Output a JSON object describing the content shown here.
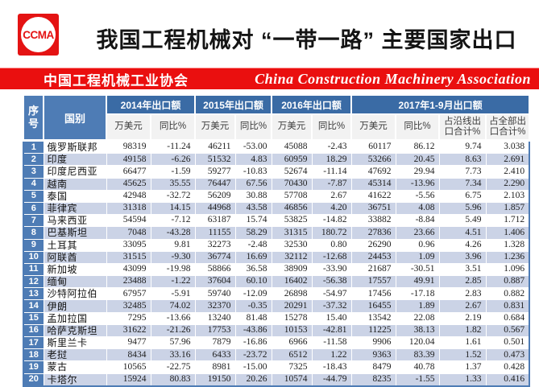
{
  "header": {
    "logo_text": "CCMA",
    "title": "我国工程机械对 “一带一路” 主要国家出口",
    "banner_cn": "中国工程机械工业协会",
    "banner_en": "China Construction Machinery Association"
  },
  "colors": {
    "brand_red": "#ea0f0f",
    "header_blue": "#4e7cb5",
    "group_header_blue": "#3a6ba5",
    "stripe_blue": "#cbd3e6",
    "subheader_gray": "#f2f2f2"
  },
  "table": {
    "index_header": "序号",
    "country_header": "国别",
    "col_groups": [
      {
        "label": "2014年出口额",
        "cols": [
          "万美元",
          "同比%"
        ]
      },
      {
        "label": "2015年出口额",
        "cols": [
          "万美元",
          "同比%"
        ]
      },
      {
        "label": "2016年出口额",
        "cols": [
          "万美元",
          "同比%"
        ]
      },
      {
        "label": "2017年1-9月出口额",
        "cols": [
          "万美元",
          "同比%",
          "占沿线出口合计%",
          "占全部出口合计%"
        ]
      }
    ],
    "rows": [
      {
        "no": "1",
        "country": "俄罗斯联邦",
        "values": [
          "98319",
          "-11.24",
          "46211",
          "-53.00",
          "45088",
          "-2.43",
          "60117",
          "86.12",
          "9.74",
          "3.038"
        ]
      },
      {
        "no": "2",
        "country": "印度",
        "values": [
          "49158",
          "-6.26",
          "51532",
          "4.83",
          "60959",
          "18.29",
          "53266",
          "20.45",
          "8.63",
          "2.691"
        ]
      },
      {
        "no": "3",
        "country": "印度尼西亚",
        "values": [
          "66477",
          "-1.59",
          "59277",
          "-10.83",
          "52674",
          "-11.14",
          "47692",
          "29.94",
          "7.73",
          "2.410"
        ]
      },
      {
        "no": "4",
        "country": "越南",
        "values": [
          "45625",
          "35.55",
          "76447",
          "67.56",
          "70430",
          "-7.87",
          "45314",
          "-13.96",
          "7.34",
          "2.290"
        ]
      },
      {
        "no": "5",
        "country": "泰国",
        "values": [
          "42948",
          "-32.72",
          "56209",
          "30.88",
          "57708",
          "2.67",
          "41622",
          "-5.56",
          "6.75",
          "2.103"
        ]
      },
      {
        "no": "6",
        "country": "菲律宾",
        "values": [
          "31318",
          "14.15",
          "44968",
          "43.58",
          "46856",
          "4.20",
          "36751",
          "4.08",
          "5.96",
          "1.857"
        ]
      },
      {
        "no": "7",
        "country": "马来西亚",
        "values": [
          "54594",
          "-7.12",
          "63187",
          "15.74",
          "53825",
          "-14.82",
          "33882",
          "-8.84",
          "5.49",
          "1.712"
        ]
      },
      {
        "no": "8",
        "country": "巴基斯坦",
        "values": [
          "7048",
          "-43.28",
          "11155",
          "58.29",
          "31315",
          "180.72",
          "27836",
          "23.66",
          "4.51",
          "1.406"
        ]
      },
      {
        "no": "9",
        "country": "土耳其",
        "values": [
          "33095",
          "9.81",
          "32273",
          "-2.48",
          "32530",
          "0.80",
          "26290",
          "0.96",
          "4.26",
          "1.328"
        ]
      },
      {
        "no": "10",
        "country": "阿联酋",
        "values": [
          "31515",
          "-9.30",
          "36774",
          "16.69",
          "32112",
          "-12.68",
          "24453",
          "1.09",
          "3.96",
          "1.236"
        ]
      },
      {
        "no": "11",
        "country": "新加坡",
        "values": [
          "43099",
          "-19.98",
          "58866",
          "36.58",
          "38909",
          "-33.90",
          "21687",
          "-30.51",
          "3.51",
          "1.096"
        ]
      },
      {
        "no": "12",
        "country": "缅甸",
        "values": [
          "23488",
          "-1.22",
          "37604",
          "60.10",
          "16402",
          "-56.38",
          "17557",
          "49.91",
          "2.85",
          "0.887"
        ]
      },
      {
        "no": "13",
        "country": "沙特阿拉伯",
        "values": [
          "67957",
          "-5.91",
          "59740",
          "-12.09",
          "26898",
          "-54.97",
          "17456",
          "-17.18",
          "2.83",
          "0.882"
        ]
      },
      {
        "no": "14",
        "country": "伊朗",
        "values": [
          "32485",
          "74.02",
          "32370",
          "-0.35",
          "20291",
          "-37.32",
          "16455",
          "1.89",
          "2.67",
          "0.831"
        ]
      },
      {
        "no": "15",
        "country": "孟加拉国",
        "values": [
          "7295",
          "-13.66",
          "13240",
          "81.48",
          "15278",
          "15.40",
          "13542",
          "22.08",
          "2.19",
          "0.684"
        ]
      },
      {
        "no": "16",
        "country": "哈萨克斯坦",
        "values": [
          "31622",
          "-21.26",
          "17753",
          "-43.86",
          "10153",
          "-42.81",
          "11225",
          "38.13",
          "1.82",
          "0.567"
        ]
      },
      {
        "no": "17",
        "country": "斯里兰卡",
        "values": [
          "9477",
          "57.96",
          "7879",
          "-16.86",
          "6966",
          "-11.58",
          "9906",
          "120.04",
          "1.61",
          "0.501"
        ]
      },
      {
        "no": "18",
        "country": "老挝",
        "values": [
          "8434",
          "33.16",
          "6433",
          "-23.72",
          "6512",
          "1.22",
          "9363",
          "83.39",
          "1.52",
          "0.473"
        ]
      },
      {
        "no": "19",
        "country": "蒙古",
        "values": [
          "10565",
          "-22.75",
          "8981",
          "-15.00",
          "7325",
          "-18.43",
          "8479",
          "40.78",
          "1.37",
          "0.428"
        ]
      },
      {
        "no": "20",
        "country": "卡塔尔",
        "values": [
          "15924",
          "80.83",
          "19150",
          "20.26",
          "10574",
          "-44.79",
          "8235",
          "-1.55",
          "1.33",
          "0.416"
        ]
      }
    ]
  }
}
